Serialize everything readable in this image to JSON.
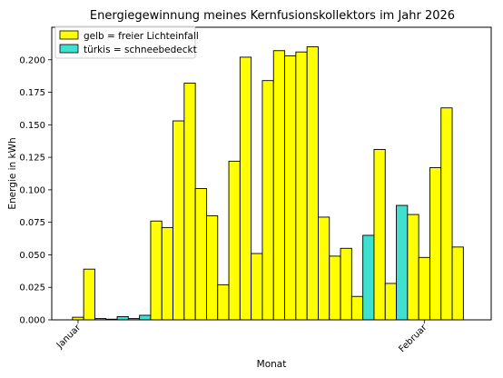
{
  "chart_data": {
    "type": "bar",
    "title": "Energiegewinnung meines Kernfusionskollektors im Jahr 2026",
    "xlabel": "Monat",
    "ylabel": "Energie in kWh",
    "ylim": [
      0,
      0.225
    ],
    "yticks": [
      "0.000",
      "0.025",
      "0.050",
      "0.075",
      "0.100",
      "0.125",
      "0.150",
      "0.175",
      "0.200"
    ],
    "x_ticks": [
      {
        "label": "Januar",
        "day": 1
      },
      {
        "label": "Februar",
        "day": 32
      }
    ],
    "grid": false,
    "legend_position": "top-left",
    "legend": [
      {
        "label": "gelb = freier Lichteinfall",
        "color": "#ffff00"
      },
      {
        "label": "türkis = schneebedeckt",
        "color": "#40e0d0"
      }
    ],
    "bars": [
      {
        "day": 1,
        "value": 0.002,
        "condition": "gelb"
      },
      {
        "day": 2,
        "value": 0.039,
        "condition": "gelb"
      },
      {
        "day": 3,
        "value": 0.001,
        "condition": "türkis"
      },
      {
        "day": 4,
        "value": 0.0005,
        "condition": "gelb"
      },
      {
        "day": 5,
        "value": 0.0025,
        "condition": "türkis"
      },
      {
        "day": 6,
        "value": 0.001,
        "condition": "türkis"
      },
      {
        "day": 7,
        "value": 0.0035,
        "condition": "türkis"
      },
      {
        "day": 8,
        "value": 0.076,
        "condition": "gelb"
      },
      {
        "day": 9,
        "value": 0.071,
        "condition": "gelb"
      },
      {
        "day": 10,
        "value": 0.153,
        "condition": "gelb"
      },
      {
        "day": 11,
        "value": 0.182,
        "condition": "gelb"
      },
      {
        "day": 12,
        "value": 0.101,
        "condition": "gelb"
      },
      {
        "day": 13,
        "value": 0.08,
        "condition": "gelb"
      },
      {
        "day": 14,
        "value": 0.027,
        "condition": "gelb"
      },
      {
        "day": 15,
        "value": 0.122,
        "condition": "gelb"
      },
      {
        "day": 16,
        "value": 0.202,
        "condition": "gelb"
      },
      {
        "day": 17,
        "value": 0.051,
        "condition": "gelb"
      },
      {
        "day": 18,
        "value": 0.184,
        "condition": "gelb"
      },
      {
        "day": 19,
        "value": 0.207,
        "condition": "gelb"
      },
      {
        "day": 20,
        "value": 0.203,
        "condition": "gelb"
      },
      {
        "day": 21,
        "value": 0.206,
        "condition": "gelb"
      },
      {
        "day": 22,
        "value": 0.21,
        "condition": "gelb"
      },
      {
        "day": 23,
        "value": 0.079,
        "condition": "gelb"
      },
      {
        "day": 24,
        "value": 0.049,
        "condition": "gelb"
      },
      {
        "day": 25,
        "value": 0.055,
        "condition": "gelb"
      },
      {
        "day": 26,
        "value": 0.018,
        "condition": "gelb"
      },
      {
        "day": 27,
        "value": 0.065,
        "condition": "türkis"
      },
      {
        "day": 28,
        "value": 0.131,
        "condition": "gelb"
      },
      {
        "day": 29,
        "value": 0.028,
        "condition": "gelb"
      },
      {
        "day": 30,
        "value": 0.088,
        "condition": "türkis"
      },
      {
        "day": 31,
        "value": 0.081,
        "condition": "gelb"
      },
      {
        "day": 32,
        "value": 0.048,
        "condition": "gelb"
      },
      {
        "day": 33,
        "value": 0.117,
        "condition": "gelb"
      },
      {
        "day": 34,
        "value": 0.163,
        "condition": "gelb"
      },
      {
        "day": 35,
        "value": 0.056,
        "condition": "gelb"
      }
    ]
  }
}
